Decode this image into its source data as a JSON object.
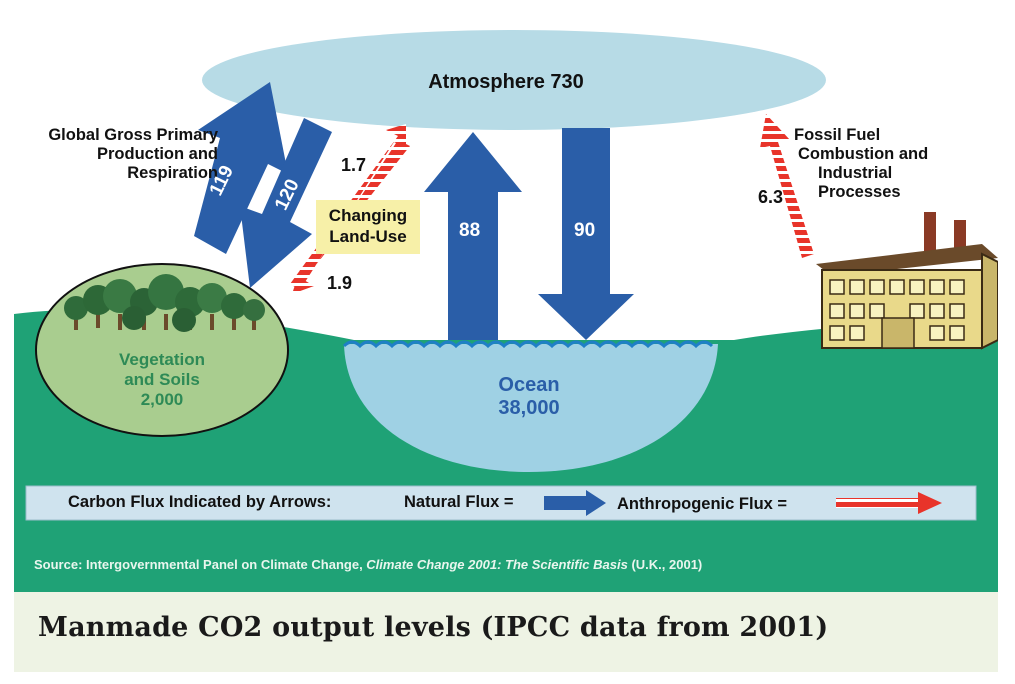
{
  "diagram": {
    "atmosphere_label": "Atmosphere 730",
    "gpp_label_lines": [
      "Global Gross Primary",
      "Production and",
      "Respiration"
    ],
    "flux_119": "119",
    "flux_120": "120",
    "flux_1_7": "1.7",
    "flux_1_9": "1.9",
    "land_use_lines": [
      "Changing",
      "Land-Use"
    ],
    "flux_88": "88",
    "flux_90": "90",
    "fossil_label_lines": [
      "Fossil Fuel",
      "Combustion and",
      "Industrial",
      "Processes"
    ],
    "flux_6_3": "6.3",
    "vegetation_lines": [
      "Vegetation",
      "and Soils",
      "2,000"
    ],
    "ocean_lines": [
      "Ocean",
      "38,000"
    ],
    "legend": {
      "prefix": "Carbon Flux Indicated by Arrows:",
      "natural": "Natural Flux =",
      "anthropogenic": "Anthropogenic Flux ="
    },
    "source": {
      "prefix": "Source: Intergovernmental Panel on Climate Change, ",
      "italic": "Climate Change 2001: The Scientific Basis",
      "suffix": " (U.K., 2001)"
    }
  },
  "caption": "Manmade CO2 output levels (IPCC data from 2001)",
  "colors": {
    "ground": "#1fa276",
    "atmosphere": "#b7dbe6",
    "ocean": "#9fd1e4",
    "natural_arrow": "#2a5ea8",
    "anthro_arrow": "#e8342a",
    "landuse_box": "#f7f0a8",
    "text_blue": "#2a5ea8",
    "veg_text": "#2e8a56",
    "caption_bg": "#eef3e4"
  }
}
